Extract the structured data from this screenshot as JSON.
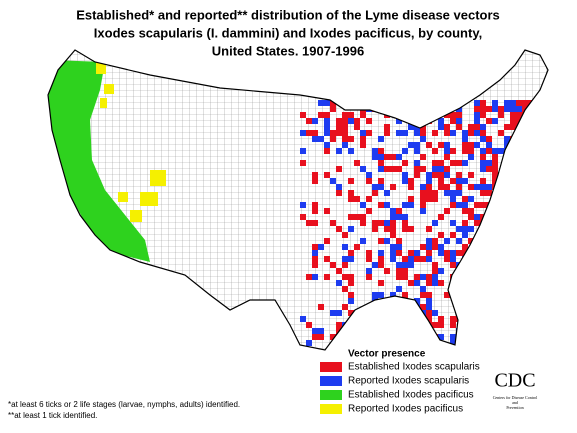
{
  "title": [
    "Established* and reported** distribution of the Lyme disease vectors",
    "Ixodes scapularis (I. dammini) and Ixodes pacificus, by county,",
    "United States. 1907-1996"
  ],
  "legend": {
    "title": "Vector presence",
    "items": [
      {
        "label": "Established Ixodes scapularis",
        "color": "#e8101e"
      },
      {
        "label": "Reported Ixodes scapularis",
        "color": "#1e3cf0"
      },
      {
        "label": "Established Ixodes pacificus",
        "color": "#2ed21e"
      },
      {
        "label": "Reported Ixodes pacificus",
        "color": "#f5f000"
      }
    ]
  },
  "footnotes": [
    "*at least 6 ticks or 2 life stages (larvae, nymphs, adults) identified.",
    "**at least 1 tick identified."
  ],
  "logo": {
    "name": "CDC",
    "subtitle": [
      "Centers for Disease Control",
      "and",
      "Prevention"
    ]
  }
}
